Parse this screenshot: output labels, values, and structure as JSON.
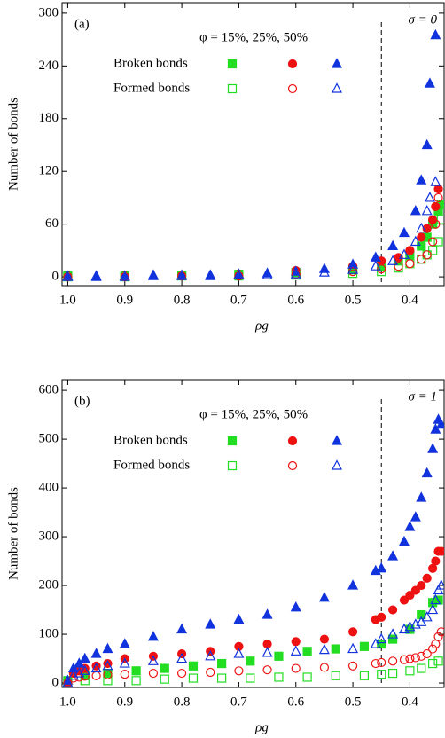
{
  "chart_data": [
    {
      "type": "scatter",
      "panel": "(a)",
      "annotation": "σ = 0",
      "legend_header": "φ = 15%, 25%, 50%",
      "legend_rows": [
        "Broken bonds",
        "Formed bonds"
      ],
      "xlabel": "ρg",
      "ylabel": "Number of bonds",
      "vline": 0.45,
      "xlim": [
        1.01,
        0.34
      ],
      "xticks": [
        {
          "value": 1.0,
          "label": "1.0"
        },
        0.9,
        0.8,
        0.7,
        0.6,
        0.5,
        0.4
      ],
      "ylim": [
        -10,
        312
      ],
      "yticks": [
        0,
        60,
        120,
        180,
        240,
        300
      ],
      "series": [
        {
          "color": "#22dd22",
          "marker": "square",
          "filled": true,
          "x": [
            1.0,
            0.9,
            0.8,
            0.7,
            0.6,
            0.5,
            0.45,
            0.42,
            0.4,
            0.38,
            0.37,
            0.36,
            0.35,
            0.345
          ],
          "values": [
            1,
            1,
            2,
            3,
            5,
            8,
            12,
            18,
            25,
            35,
            45,
            60,
            75,
            82
          ]
        },
        {
          "color": "#ee1111",
          "marker": "circle",
          "filled": true,
          "x": [
            1.0,
            0.9,
            0.8,
            0.7,
            0.6,
            0.5,
            0.45,
            0.42,
            0.4,
            0.38,
            0.37,
            0.36,
            0.355,
            0.35
          ],
          "values": [
            1,
            1,
            2,
            3,
            7,
            12,
            18,
            22,
            30,
            45,
            55,
            65,
            80,
            100
          ]
        },
        {
          "color": "#1133dd",
          "marker": "triangle",
          "filled": true,
          "x": [
            1.0,
            0.95,
            0.9,
            0.85,
            0.8,
            0.75,
            0.7,
            0.65,
            0.6,
            0.55,
            0.5,
            0.46,
            0.43,
            0.41,
            0.39,
            0.38,
            0.37,
            0.365,
            0.355
          ],
          "values": [
            1,
            1,
            1,
            2,
            2,
            2,
            3,
            4,
            6,
            9,
            14,
            22,
            35,
            50,
            75,
            110,
            150,
            220,
            275
          ]
        },
        {
          "color": "#22dd22",
          "marker": "square",
          "filled": false,
          "x": [
            1.0,
            0.9,
            0.8,
            0.7,
            0.6,
            0.5,
            0.45,
            0.42,
            0.4,
            0.38,
            0.37,
            0.36,
            0.35,
            0.345
          ],
          "values": [
            0,
            0,
            1,
            1,
            2,
            4,
            6,
            10,
            15,
            20,
            25,
            30,
            40,
            65
          ]
        },
        {
          "color": "#ee1111",
          "marker": "circle",
          "filled": false,
          "x": [
            1.0,
            0.9,
            0.8,
            0.7,
            0.6,
            0.5,
            0.45,
            0.42,
            0.4,
            0.38,
            0.37,
            0.36,
            0.355,
            0.35
          ],
          "values": [
            0,
            0,
            1,
            1,
            3,
            6,
            9,
            12,
            15,
            20,
            25,
            40,
            60,
            90
          ]
        },
        {
          "color": "#1133dd",
          "marker": "triangle",
          "filled": false,
          "x": [
            1.0,
            0.95,
            0.9,
            0.85,
            0.8,
            0.75,
            0.7,
            0.65,
            0.6,
            0.55,
            0.5,
            0.46,
            0.43,
            0.41,
            0.39,
            0.38,
            0.37,
            0.365,
            0.355
          ],
          "values": [
            0,
            0,
            0,
            1,
            1,
            1,
            2,
            2,
            3,
            5,
            8,
            12,
            18,
            25,
            40,
            55,
            75,
            90,
            108
          ]
        }
      ]
    },
    {
      "type": "scatter",
      "panel": "(b)",
      "annotation": "σ = 1",
      "legend_header": "φ = 15%, 25%, 50%",
      "legend_rows": [
        "Broken bonds",
        "Formed bonds"
      ],
      "xlabel": "ρg",
      "ylabel": "Number of bonds",
      "vline": 0.45,
      "xlim": [
        1.01,
        0.34
      ],
      "xticks": [
        {
          "value": 1.0,
          "label": "1.0"
        },
        0.9,
        0.8,
        0.7,
        0.6,
        0.5,
        0.4
      ],
      "ylim": [
        -9,
        622
      ],
      "yticks": [
        0,
        100,
        200,
        300,
        400,
        500,
        600
      ],
      "series": [
        {
          "color": "#22dd22",
          "marker": "square",
          "filled": true,
          "x": [
            1.0,
            0.97,
            0.93,
            0.88,
            0.83,
            0.78,
            0.73,
            0.68,
            0.63,
            0.58,
            0.53,
            0.48,
            0.45,
            0.43,
            0.4,
            0.38,
            0.36,
            0.35
          ],
          "values": [
            5,
            15,
            20,
            25,
            30,
            35,
            40,
            45,
            55,
            65,
            70,
            75,
            80,
            90,
            110,
            140,
            165,
            170
          ]
        },
        {
          "color": "#ee1111",
          "marker": "circle",
          "filled": true,
          "x": [
            1.0,
            0.99,
            0.98,
            0.97,
            0.95,
            0.93,
            0.9,
            0.85,
            0.8,
            0.75,
            0.7,
            0.65,
            0.6,
            0.55,
            0.5,
            0.46,
            0.45,
            0.43,
            0.41,
            0.4,
            0.39,
            0.38,
            0.37,
            0.36,
            0.355,
            0.35,
            0.345
          ],
          "values": [
            0,
            20,
            25,
            30,
            35,
            40,
            50,
            55,
            60,
            65,
            75,
            80,
            85,
            90,
            105,
            130,
            135,
            150,
            170,
            180,
            190,
            200,
            215,
            235,
            250,
            270,
            270
          ]
        },
        {
          "color": "#1133dd",
          "marker": "triangle",
          "filled": true,
          "x": [
            1.0,
            0.99,
            0.98,
            0.97,
            0.95,
            0.93,
            0.9,
            0.85,
            0.8,
            0.75,
            0.7,
            0.65,
            0.6,
            0.55,
            0.5,
            0.46,
            0.45,
            0.43,
            0.41,
            0.4,
            0.39,
            0.38,
            0.37,
            0.36,
            0.355,
            0.35,
            0.345
          ],
          "values": [
            5,
            30,
            40,
            50,
            60,
            70,
            80,
            95,
            110,
            120,
            130,
            140,
            155,
            175,
            200,
            230,
            235,
            260,
            290,
            320,
            340,
            380,
            430,
            480,
            520,
            540,
            530
          ]
        },
        {
          "color": "#22dd22",
          "marker": "square",
          "filled": false,
          "x": [
            1.0,
            0.97,
            0.93,
            0.88,
            0.83,
            0.78,
            0.73,
            0.68,
            0.63,
            0.58,
            0.53,
            0.48,
            0.45,
            0.43,
            0.4,
            0.38,
            0.36,
            0.35
          ],
          "values": [
            0,
            5,
            5,
            5,
            8,
            10,
            10,
            10,
            12,
            12,
            15,
            15,
            18,
            20,
            25,
            30,
            40,
            45
          ]
        },
        {
          "color": "#ee1111",
          "marker": "circle",
          "filled": false,
          "x": [
            1.0,
            0.99,
            0.98,
            0.97,
            0.95,
            0.93,
            0.9,
            0.85,
            0.8,
            0.75,
            0.7,
            0.65,
            0.6,
            0.55,
            0.5,
            0.46,
            0.45,
            0.43,
            0.41,
            0.4,
            0.39,
            0.38,
            0.37,
            0.36,
            0.355,
            0.35,
            0.345
          ],
          "values": [
            0,
            10,
            12,
            14,
            15,
            17,
            18,
            20,
            20,
            22,
            25,
            27,
            30,
            32,
            35,
            40,
            42,
            45,
            48,
            50,
            52,
            55,
            60,
            70,
            80,
            95,
            105
          ]
        },
        {
          "color": "#1133dd",
          "marker": "triangle",
          "filled": false,
          "x": [
            1.0,
            0.99,
            0.98,
            0.97,
            0.95,
            0.93,
            0.9,
            0.85,
            0.8,
            0.75,
            0.7,
            0.65,
            0.6,
            0.55,
            0.5,
            0.46,
            0.45,
            0.43,
            0.41,
            0.4,
            0.39,
            0.38,
            0.37,
            0.36,
            0.355,
            0.35,
            0.345
          ],
          "values": [
            0,
            15,
            20,
            25,
            30,
            35,
            40,
            45,
            50,
            55,
            60,
            62,
            65,
            68,
            70,
            80,
            90,
            100,
            110,
            115,
            120,
            125,
            135,
            150,
            170,
            190,
            200
          ]
        }
      ]
    }
  ]
}
